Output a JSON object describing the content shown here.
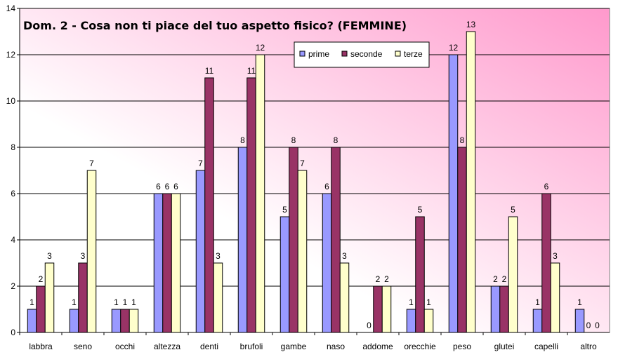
{
  "chart_data": {
    "type": "bar",
    "title": "Dom. 2 - Cosa non ti piace del tuo aspetto fisico?  (FEMMINE)",
    "categories": [
      "labbra",
      "seno",
      "occhi",
      "altezza",
      "denti",
      "brufoli",
      "gambe",
      "naso",
      "addome",
      "orecchie",
      "peso",
      "glutei",
      "capelli",
      "altro"
    ],
    "series": [
      {
        "name": "prime",
        "color": "#9999ff",
        "values": [
          1,
          1,
          1,
          6,
          7,
          8,
          5,
          6,
          0,
          1,
          12,
          2,
          1,
          1
        ]
      },
      {
        "name": "seconde",
        "color": "#993366",
        "values": [
          2,
          3,
          1,
          6,
          11,
          11,
          8,
          8,
          2,
          5,
          8,
          2,
          6,
          0
        ]
      },
      {
        "name": "terze",
        "color": "#ffffcc",
        "values": [
          3,
          7,
          1,
          6,
          3,
          12,
          7,
          3,
          2,
          1,
          13,
          5,
          3,
          0
        ]
      }
    ],
    "ylim": [
      0,
      14
    ],
    "yticks": [
      0,
      2,
      4,
      6,
      8,
      10,
      12,
      14
    ],
    "grid": true,
    "legend_position": "top-center",
    "background": {
      "gradient_from": "#ffffff",
      "gradient_to": "#ff99cc"
    }
  }
}
